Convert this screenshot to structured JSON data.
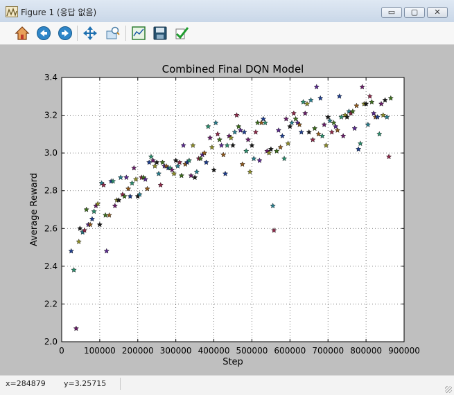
{
  "window": {
    "title": "Figure 1 (응답 없음)"
  },
  "window_buttons": {
    "minimize": "▭",
    "restore": "▢",
    "close": "✕"
  },
  "toolbar": {
    "items": [
      "home-icon",
      "back-icon",
      "forward-icon",
      "pan-icon",
      "zoom-icon",
      "subplots-icon",
      "save-icon",
      "edit-icon"
    ]
  },
  "status": {
    "x": "x=284879",
    "y": "y=3.25715"
  },
  "colors": {
    "plot_bg": "#ffffff",
    "figure_bg": "#bfbfbf"
  },
  "chart_data": {
    "type": "scatter",
    "title": "Combined Final DQN Model",
    "xlabel": "Step",
    "ylabel": "Average Reward",
    "xlim": [
      0,
      900000
    ],
    "ylim": [
      2.0,
      3.4
    ],
    "xticks": [
      "0",
      "100000",
      "200000",
      "300000",
      "400000",
      "500000",
      "600000",
      "700000",
      "800000",
      "900000"
    ],
    "yticks": [
      "2.0",
      "2.2",
      "2.4",
      "2.6",
      "2.8",
      "3.0",
      "3.2",
      "3.4"
    ],
    "grid": true,
    "marker": "star",
    "points": [
      [
        25000,
        2.48
      ],
      [
        32000,
        2.38
      ],
      [
        38000,
        2.07
      ],
      [
        45000,
        2.53
      ],
      [
        48000,
        2.6
      ],
      [
        55000,
        2.58
      ],
      [
        60000,
        2.59
      ],
      [
        65000,
        2.7
      ],
      [
        70000,
        2.62
      ],
      [
        75000,
        2.62
      ],
      [
        80000,
        2.65
      ],
      [
        85000,
        2.69
      ],
      [
        90000,
        2.72
      ],
      [
        95000,
        2.73
      ],
      [
        100000,
        2.62
      ],
      [
        105000,
        2.84
      ],
      [
        110000,
        2.83
      ],
      [
        115000,
        2.67
      ],
      [
        118000,
        2.48
      ],
      [
        125000,
        2.67
      ],
      [
        130000,
        2.85
      ],
      [
        135000,
        2.85
      ],
      [
        140000,
        2.72
      ],
      [
        145000,
        2.75
      ],
      [
        150000,
        2.75
      ],
      [
        155000,
        2.87
      ],
      [
        160000,
        2.78
      ],
      [
        165000,
        2.77
      ],
      [
        170000,
        2.87
      ],
      [
        175000,
        2.81
      ],
      [
        180000,
        2.77
      ],
      [
        185000,
        2.84
      ],
      [
        190000,
        2.92
      ],
      [
        195000,
        2.86
      ],
      [
        200000,
        2.77
      ],
      [
        205000,
        2.78
      ],
      [
        210000,
        2.87
      ],
      [
        215000,
        2.87
      ],
      [
        220000,
        2.86
      ],
      [
        225000,
        2.81
      ],
      [
        230000,
        2.95
      ],
      [
        235000,
        2.98
      ],
      [
        240000,
        2.96
      ],
      [
        245000,
        2.93
      ],
      [
        250000,
        2.95
      ],
      [
        255000,
        2.89
      ],
      [
        260000,
        2.83
      ],
      [
        265000,
        2.95
      ],
      [
        270000,
        2.93
      ],
      [
        275000,
        2.93
      ],
      [
        280000,
        2.92
      ],
      [
        285000,
        2.92
      ],
      [
        290000,
        2.91
      ],
      [
        295000,
        2.89
      ],
      [
        300000,
        2.96
      ],
      [
        305000,
        2.93
      ],
      [
        310000,
        2.95
      ],
      [
        315000,
        2.88
      ],
      [
        320000,
        3.04
      ],
      [
        325000,
        2.94
      ],
      [
        330000,
        2.95
      ],
      [
        335000,
        2.96
      ],
      [
        340000,
        2.88
      ],
      [
        345000,
        3.04
      ],
      [
        350000,
        2.87
      ],
      [
        355000,
        2.9
      ],
      [
        360000,
        2.97
      ],
      [
        365000,
        2.97
      ],
      [
        370000,
        2.99
      ],
      [
        375000,
        3.0
      ],
      [
        380000,
        2.95
      ],
      [
        385000,
        3.14
      ],
      [
        390000,
        3.08
      ],
      [
        395000,
        3.03
      ],
      [
        400000,
        2.91
      ],
      [
        405000,
        3.16
      ],
      [
        410000,
        3.1
      ],
      [
        415000,
        3.07
      ],
      [
        420000,
        3.04
      ],
      [
        425000,
        2.99
      ],
      [
        430000,
        2.89
      ],
      [
        435000,
        3.04
      ],
      [
        440000,
        3.09
      ],
      [
        445000,
        3.08
      ],
      [
        450000,
        3.04
      ],
      [
        455000,
        3.11
      ],
      [
        460000,
        3.2
      ],
      [
        465000,
        3.14
      ],
      [
        470000,
        3.12
      ],
      [
        475000,
        2.94
      ],
      [
        480000,
        3.11
      ],
      [
        485000,
        3.01
      ],
      [
        490000,
        3.07
      ],
      [
        495000,
        2.9
      ],
      [
        500000,
        3.04
      ],
      [
        505000,
        2.97
      ],
      [
        510000,
        3.11
      ],
      [
        515000,
        3.16
      ],
      [
        520000,
        2.96
      ],
      [
        525000,
        3.16
      ],
      [
        530000,
        3.18
      ],
      [
        535000,
        3.16
      ],
      [
        540000,
        3.01
      ],
      [
        545000,
        3.0
      ],
      [
        550000,
        3.02
      ],
      [
        555000,
        2.72
      ],
      [
        558000,
        2.59
      ],
      [
        565000,
        3.01
      ],
      [
        570000,
        3.12
      ],
      [
        575000,
        3.03
      ],
      [
        580000,
        3.09
      ],
      [
        585000,
        2.97
      ],
      [
        590000,
        3.18
      ],
      [
        595000,
        3.05
      ],
      [
        600000,
        3.14
      ],
      [
        605000,
        3.16
      ],
      [
        610000,
        3.21
      ],
      [
        615000,
        3.18
      ],
      [
        620000,
        3.16
      ],
      [
        625000,
        3.15
      ],
      [
        630000,
        3.11
      ],
      [
        635000,
        3.27
      ],
      [
        640000,
        3.21
      ],
      [
        645000,
        3.26
      ],
      [
        650000,
        3.11
      ],
      [
        655000,
        3.28
      ],
      [
        660000,
        3.07
      ],
      [
        665000,
        3.13
      ],
      [
        670000,
        3.35
      ],
      [
        675000,
        3.1
      ],
      [
        680000,
        3.29
      ],
      [
        685000,
        3.09
      ],
      [
        690000,
        3.15
      ],
      [
        695000,
        3.04
      ],
      [
        700000,
        3.19
      ],
      [
        705000,
        3.17
      ],
      [
        710000,
        3.11
      ],
      [
        715000,
        3.16
      ],
      [
        720000,
        3.14
      ],
      [
        725000,
        3.12
      ],
      [
        730000,
        3.3
      ],
      [
        735000,
        3.19
      ],
      [
        740000,
        3.09
      ],
      [
        745000,
        3.2
      ],
      [
        750000,
        3.19
      ],
      [
        755000,
        3.22
      ],
      [
        760000,
        3.21
      ],
      [
        765000,
        3.22
      ],
      [
        770000,
        3.13
      ],
      [
        775000,
        3.25
      ],
      [
        780000,
        3.02
      ],
      [
        785000,
        3.05
      ],
      [
        790000,
        3.35
      ],
      [
        795000,
        3.26
      ],
      [
        800000,
        3.26
      ],
      [
        805000,
        3.15
      ],
      [
        810000,
        3.3
      ],
      [
        815000,
        3.27
      ],
      [
        820000,
        3.21
      ],
      [
        825000,
        3.19
      ],
      [
        830000,
        3.19
      ],
      [
        835000,
        3.1
      ],
      [
        840000,
        3.26
      ],
      [
        845000,
        3.2
      ],
      [
        850000,
        3.28
      ],
      [
        855000,
        3.19
      ],
      [
        860000,
        2.98
      ],
      [
        865000,
        3.29
      ]
    ]
  }
}
